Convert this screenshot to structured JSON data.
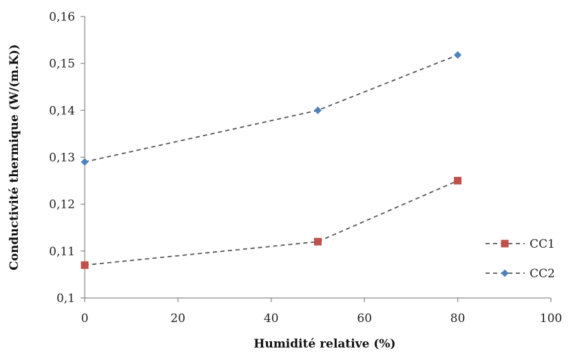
{
  "chart_data": {
    "type": "line",
    "xlabel": "Humidité relative (%)",
    "ylabel": "Conductivité thermique (W/(m.K))",
    "xlim": [
      0,
      100
    ],
    "ylim": [
      0.1,
      0.16
    ],
    "x_ticks": [
      0,
      20,
      40,
      60,
      80,
      100
    ],
    "x_tick_labels": [
      "0",
      "20",
      "40",
      "60",
      "80",
      "100"
    ],
    "y_ticks": [
      0.1,
      0.11,
      0.12,
      0.13,
      0.14,
      0.15,
      0.16
    ],
    "y_tick_labels": [
      "0,1",
      "0,11",
      "0,12",
      "0,13",
      "0,14",
      "0,15",
      "0,16"
    ],
    "grid": false,
    "legend_position": "right",
    "series": [
      {
        "name": "CC1",
        "x": [
          0,
          50,
          80
        ],
        "y": [
          0.107,
          0.112,
          0.125
        ],
        "color": "#c0504d",
        "marker": "square"
      },
      {
        "name": "CC2",
        "x": [
          0,
          50,
          80
        ],
        "y": [
          0.129,
          0.14,
          0.1518
        ],
        "color": "#4f81bd",
        "marker": "diamond"
      }
    ]
  }
}
